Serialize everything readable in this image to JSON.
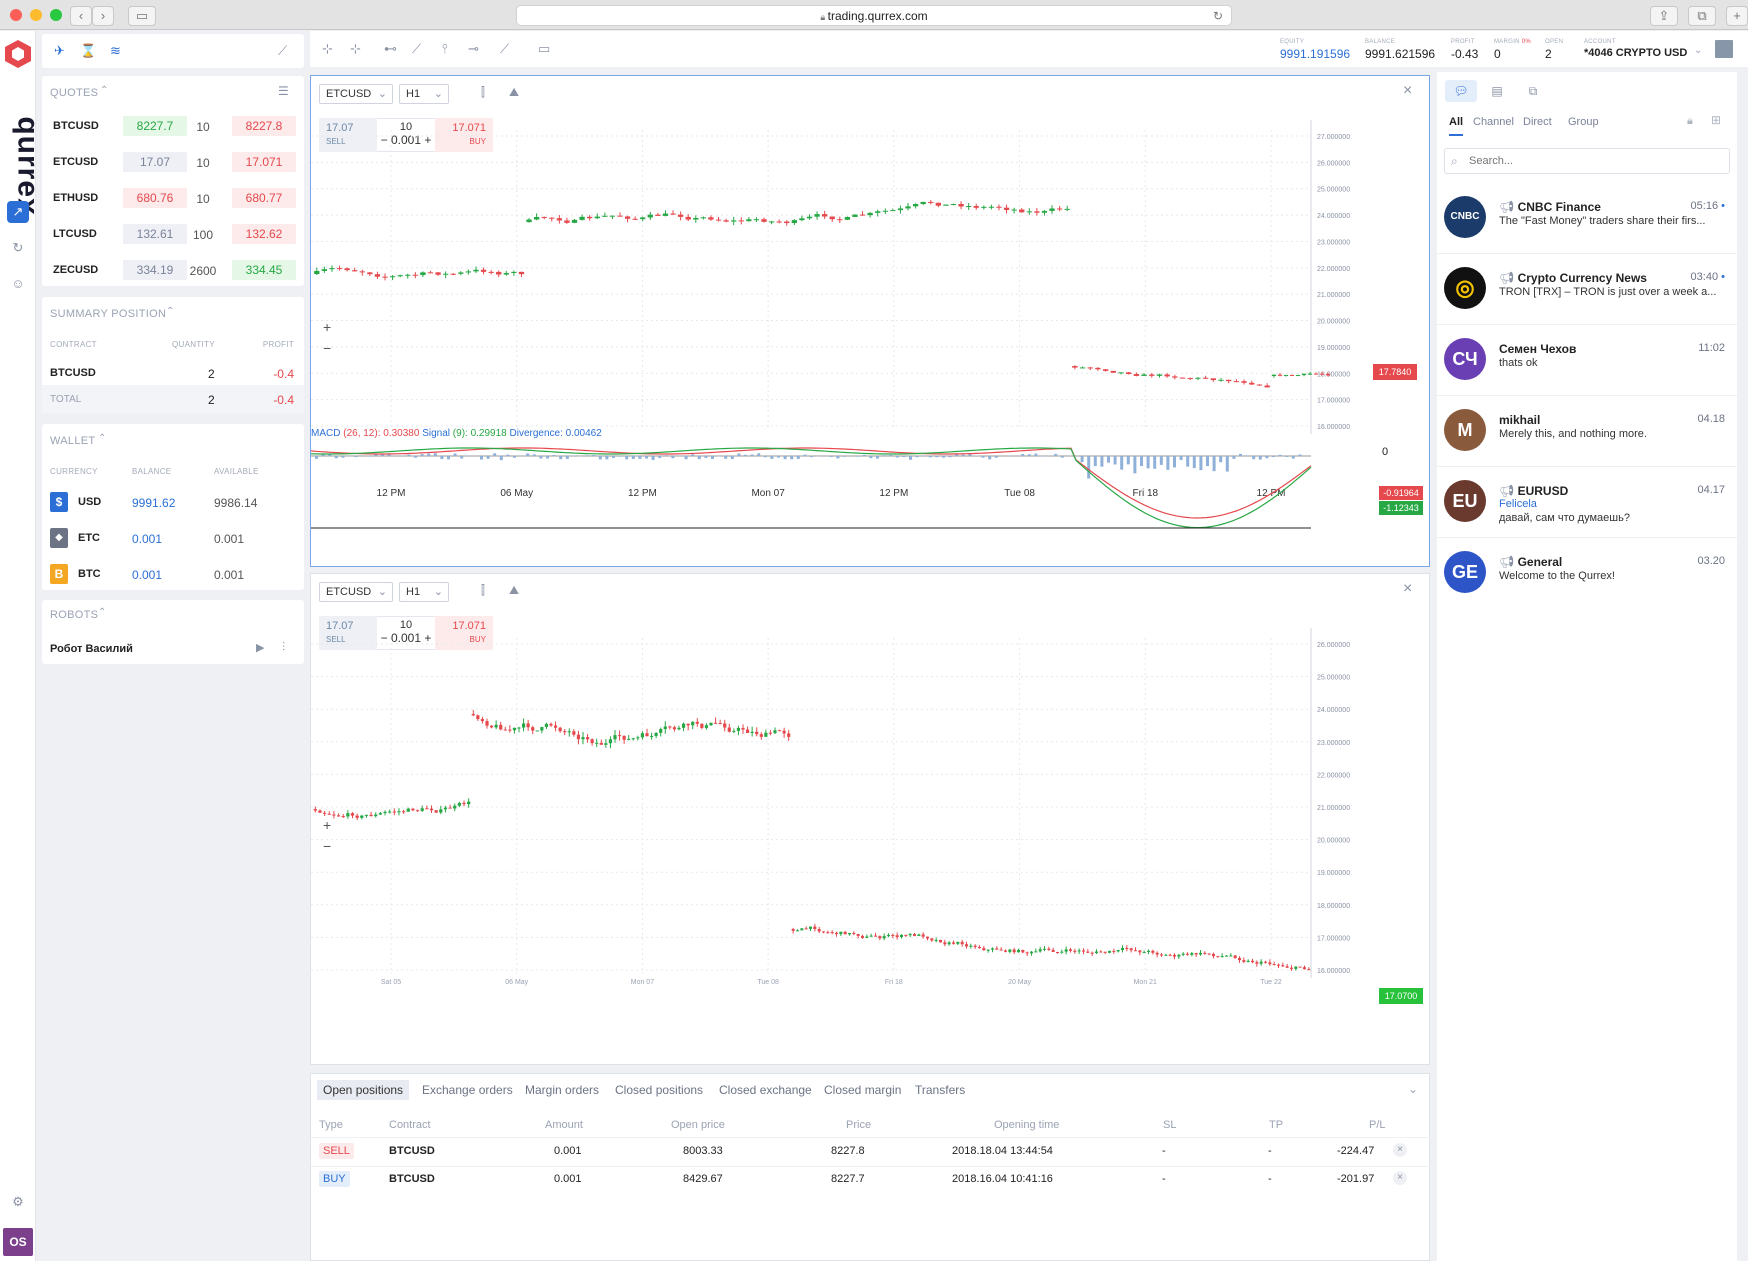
{
  "browser": {
    "url": "trading.qurrex.com"
  },
  "brand": {
    "name": "qurrex",
    "accent": "#e5484d"
  },
  "account": {
    "equity_label": "EQUITY",
    "equity": "9991.191596",
    "balance_label": "BALANCE",
    "balance": "9991.621596",
    "profit_label": "PROFIT",
    "profit": "-0.43",
    "margin_label": "MARGIN",
    "margin_pct": "0%",
    "margin": "0",
    "open_label": "OPEN",
    "open": "2",
    "account_label": "ACCOUNT",
    "account": "*4046 CRYPTO USD"
  },
  "quotes": {
    "title": "QUOTES",
    "rows": [
      {
        "symbol": "BTCUSD",
        "bid": "8227.7",
        "qty": "10",
        "ask": "8227.8",
        "bid_color": "green",
        "ask_color": "red"
      },
      {
        "symbol": "ETCUSD",
        "bid": "17.07",
        "qty": "10",
        "ask": "17.071",
        "bid_color": "neutral",
        "ask_color": "red"
      },
      {
        "symbol": "ETHUSD",
        "bid": "680.76",
        "qty": "10",
        "ask": "680.77",
        "bid_color": "red",
        "ask_color": "red"
      },
      {
        "symbol": "LTCUSD",
        "bid": "132.61",
        "qty": "100",
        "ask": "132.62",
        "bid_color": "neutral",
        "ask_color": "red"
      },
      {
        "symbol": "ZECUSD",
        "bid": "334.19",
        "qty": "2600",
        "ask": "334.45",
        "bid_color": "neutral",
        "ask_color": "green"
      }
    ]
  },
  "summary": {
    "title": "SUMMARY POSITION",
    "col_contract": "CONTRACT",
    "col_quantity": "QUANTITY",
    "col_profit": "PROFIT",
    "rows": [
      {
        "contract": "BTCUSD",
        "quantity": "2",
        "profit": "-0.4"
      }
    ],
    "total": {
      "label": "TOTAL",
      "quantity": "2",
      "profit": "-0.4"
    }
  },
  "wallet": {
    "title": "WALLET",
    "col_currency": "CURRENCY",
    "col_balance": "BALANCE",
    "col_available": "AVAILABLE",
    "rows": [
      {
        "icon": "$",
        "currency": "USD",
        "balance": "9991.62",
        "available": "9986.14",
        "color": "#2b6fd6"
      },
      {
        "icon": "◆",
        "currency": "ETC",
        "balance": "0.001",
        "available": "0.001",
        "color": "#6b7385"
      },
      {
        "icon": "B",
        "currency": "BTC",
        "balance": "0.001",
        "available": "0.001",
        "color": "#f5a623"
      }
    ]
  },
  "robots": {
    "title": "ROBOTS",
    "items": [
      {
        "name": "Робот Василий"
      }
    ]
  },
  "user": {
    "initials": "OS"
  },
  "chart1": {
    "symbol": "ETCUSD",
    "timeframe": "H1",
    "sell_price": "17.07",
    "sell_label": "SELL",
    "qty": "10",
    "step": "0.001",
    "buy_price": "17.071",
    "buy_label": "BUY",
    "last_price_tag": "17.7840",
    "macd": {
      "label": "MACD",
      "params": "(26, 12):",
      "value": "0.30380",
      "signal_label": "Signal",
      "signal_params": "(9):",
      "signal_value": "0.29918",
      "div_label": "Divergence:",
      "div_value": "0.00462",
      "zero": "0",
      "tag_red": "-0.91964",
      "tag_green": "-1.12343"
    },
    "x_labels": [
      "12 PM",
      "06 May",
      "12 PM",
      "Mon 07",
      "12 PM",
      "Tue 08",
      "Fri 18",
      "12 PM"
    ],
    "y_labels": [
      "27.000000",
      "26.000000",
      "25.000000",
      "24.000000",
      "23.000000",
      "22.000000",
      "21.000000",
      "20.000000",
      "19.000000",
      "18.000000",
      "17.000000",
      "16.000000"
    ]
  },
  "chart2": {
    "symbol": "ETCUSD",
    "timeframe": "H1",
    "sell_price": "17.07",
    "sell_label": "SELL",
    "qty": "10",
    "step": "0.001",
    "buy_price": "17.071",
    "buy_label": "BUY",
    "last_price_tag": "17.0700",
    "x_labels": [
      "Sat 05",
      "06 May",
      "Mon 07",
      "Tue 08",
      "Fri 18",
      "20 May",
      "Mon 21",
      "Tue 22"
    ],
    "y_labels": [
      "26.000000",
      "25.000000",
      "24.000000",
      "23.000000",
      "22.000000",
      "21.000000",
      "20.000000",
      "19.000000",
      "18.000000",
      "17.000000",
      "16.000000"
    ]
  },
  "orders": {
    "tabs": [
      "Open positions",
      "Exchange orders",
      "Margin orders",
      "Closed positions",
      "Closed exchange",
      "Closed margin",
      "Transfers"
    ],
    "active_tab": 0,
    "columns": [
      "Type",
      "Contract",
      "Amount",
      "Open price",
      "Price",
      "Opening time",
      "SL",
      "TP",
      "P/L"
    ],
    "rows": [
      {
        "type": "SELL",
        "contract": "BTCUSD",
        "amount": "0.001",
        "open_price": "8003.33",
        "price": "8227.8",
        "opening_time": "2018.18.04 13:44:54",
        "sl": "-",
        "tp": "-",
        "pl": "-224.47"
      },
      {
        "type": "BUY",
        "contract": "BTCUSD",
        "amount": "0.001",
        "open_price": "8429.67",
        "price": "8227.7",
        "opening_time": "2018.16.04 10:41:16",
        "sl": "-",
        "tp": "-",
        "pl": "-201.97"
      }
    ]
  },
  "chat": {
    "tabs": [
      "All",
      "Channel",
      "Direct",
      "Group"
    ],
    "search_placeholder": "Search...",
    "items": [
      {
        "name": "CNBC Finance",
        "time": "05:16",
        "message": "The \"Fast Money\" traders share their firs...",
        "avatar_text": "CNBC",
        "avatar_color": "#1b3c6b",
        "unread": true,
        "channel": true
      },
      {
        "name": "Crypto Currency News",
        "time": "03:40",
        "message": "TRON [TRX] – TRON is just over a week a...",
        "avatar_text": "◎",
        "avatar_color": "#111111",
        "unread": true,
        "channel": true
      },
      {
        "name": "Семен Чехов",
        "time": "11:02",
        "message": "thats ok",
        "avatar_text": "СЧ",
        "avatar_color": "#6a3fb3",
        "unread": false,
        "channel": false
      },
      {
        "name": "mikhail",
        "time": "04.18",
        "message": "Merely this, and nothing more.",
        "avatar_text": "M",
        "avatar_color": "#8a5a3c",
        "unread": false,
        "channel": false
      },
      {
        "name": "EURUSD",
        "time": "04.17",
        "sender": "Felicela",
        "message": "давай, сам что думаешь?",
        "avatar_text": "EU",
        "avatar_color": "#6b3a2e",
        "unread": false,
        "channel": true
      },
      {
        "name": "General",
        "time": "03.20",
        "message": "Welcome to the Qurrex!",
        "avatar_text": "GE",
        "avatar_color": "#2d55c8",
        "unread": false,
        "channel": true
      }
    ]
  }
}
